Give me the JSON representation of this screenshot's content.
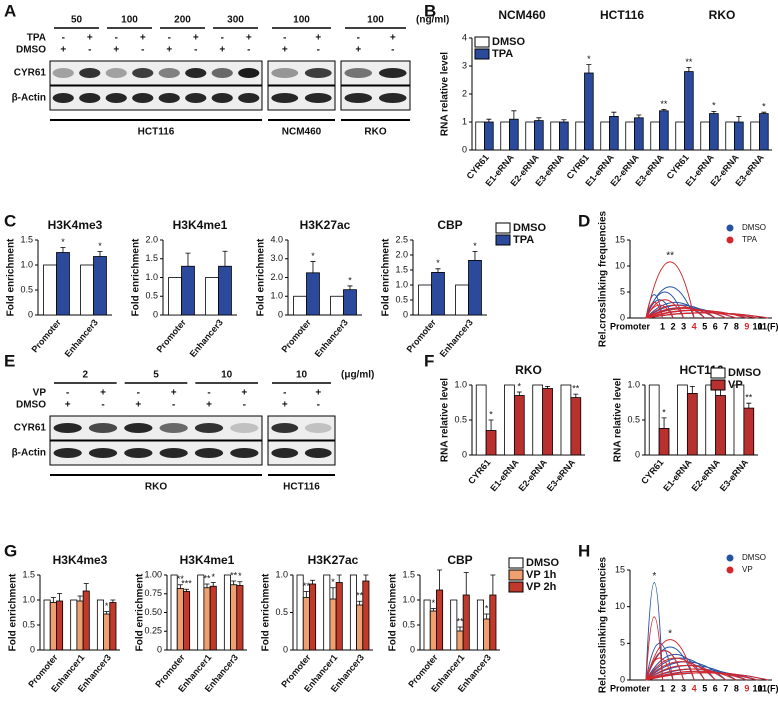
{
  "panel_labels": [
    "A",
    "B",
    "C",
    "D",
    "E",
    "F",
    "G",
    "H"
  ],
  "blots": [
    {
      "unit": "(ng/ml)",
      "treatments": [
        {
          "label": "TPA",
          "signs": [
            "-",
            "+"
          ]
        },
        {
          "label": "DMSO",
          "signs": [
            "+",
            "-"
          ]
        }
      ],
      "sections": [
        {
          "cell_line": "HCT116",
          "concentrations": [
            "50",
            "100",
            "200",
            "300"
          ]
        },
        {
          "cell_line": "NCM460",
          "concentrations": [
            "100"
          ]
        },
        {
          "cell_line": "RKO",
          "concentrations": [
            "100"
          ]
        }
      ],
      "proteins": [
        {
          "name": "CYR61",
          "bands": [
            [
              0.35,
              0.85,
              0.35,
              0.8,
              0.5,
              0.9,
              0.6,
              0.95
            ],
            [
              0.4,
              0.8
            ],
            [
              0.55,
              0.9
            ]
          ]
        },
        {
          "name": "β-Actin",
          "bands": [
            [
              0.9,
              0.9,
              0.9,
              0.9,
              0.9,
              0.9,
              0.9,
              0.9
            ],
            [
              0.9,
              0.9
            ],
            [
              0.9,
              0.9
            ]
          ]
        }
      ]
    },
    {
      "unit": "(μg/ml)",
      "treatments": [
        {
          "label": "VP",
          "signs": [
            "-",
            "+"
          ]
        },
        {
          "label": "DMSO",
          "signs": [
            "+",
            "-"
          ]
        }
      ],
      "sections": [
        {
          "cell_line": "RKO",
          "concentrations": [
            "2",
            "5",
            "10"
          ]
        },
        {
          "cell_line": "HCT116",
          "concentrations": [
            "10"
          ]
        }
      ],
      "proteins": [
        {
          "name": "CYR61",
          "bands": [
            [
              0.9,
              0.75,
              0.9,
              0.6,
              0.85,
              0.2
            ],
            [
              0.85,
              0.2
            ]
          ]
        },
        {
          "name": "β-Actin",
          "bands": [
            [
              0.9,
              0.9,
              0.9,
              0.9,
              0.9,
              0.9
            ],
            [
              0.9,
              0.9
            ]
          ]
        }
      ]
    }
  ],
  "chart_data": [
    {
      "type": "bar",
      "y_label": "RNA relative level",
      "groups": [
        "NCM460",
        "HCT116",
        "RKO"
      ],
      "categories": [
        "CYR61",
        "E1-eRNA",
        "E2-eRNA",
        "E3-eRNA",
        "CYR61",
        "E1-eRNA",
        "E2-eRNA",
        "E3-eRNA",
        "CYR61",
        "E1-eRNA",
        "E2-eRNA",
        "E3-eRNA"
      ],
      "series": [
        {
          "name": "DMSO",
          "color": "#ffffff",
          "values": [
            1,
            1,
            1,
            1,
            1,
            1,
            1,
            1,
            1,
            1,
            1,
            1
          ]
        },
        {
          "name": "TPA",
          "color": "#2b4a9b",
          "values": [
            1.0,
            1.1,
            1.05,
            1.0,
            2.75,
            1.2,
            1.15,
            1.4,
            2.8,
            1.3,
            1.0,
            1.3
          ],
          "errors": [
            0.1,
            0.3,
            0.1,
            0.08,
            0.3,
            0.15,
            0.1,
            0.05,
            0.15,
            0.08,
            0.2,
            0.05
          ],
          "stars": [
            null,
            null,
            null,
            null,
            "*",
            null,
            null,
            "**",
            "**",
            "*",
            null,
            "*"
          ]
        }
      ],
      "ylim": [
        0,
        4
      ],
      "yticks": [
        0,
        1,
        2,
        3,
        4
      ],
      "legend": "upper left"
    },
    {
      "type": "bar",
      "title": "H3K4me3",
      "y_label": "Fold enrichment",
      "categories": [
        "Promoter",
        "Enhancer3"
      ],
      "series": [
        {
          "name": "DMSO",
          "color": "#ffffff",
          "values": [
            1,
            1
          ]
        },
        {
          "name": "TPA",
          "color": "#2b4a9b",
          "values": [
            1.25,
            1.17
          ],
          "errors": [
            0.1,
            0.1
          ],
          "stars": [
            "*",
            "*"
          ]
        }
      ],
      "ylim": [
        0,
        1.5
      ],
      "yticks": [
        0,
        0.5,
        {
          "value": 1,
          "label": "1.0"
        },
        1.5
      ]
    },
    {
      "type": "bar",
      "title": "H3K4me1",
      "y_label": "Fold enrichment",
      "categories": [
        "Promoter",
        "Enhancer3"
      ],
      "series": [
        {
          "name": "DMSO",
          "color": "#ffffff",
          "values": [
            1,
            1
          ]
        },
        {
          "name": "TPA",
          "color": "#2b4a9b",
          "values": [
            1.3,
            1.3
          ],
          "errors": [
            0.35,
            0.4
          ],
          "stars": [
            null,
            null
          ]
        }
      ],
      "ylim": [
        0,
        2
      ],
      "yticks": [
        0,
        0.5,
        {
          "value": 1,
          "label": "1.0"
        },
        1.5,
        {
          "value": 2,
          "label": "2.0"
        }
      ]
    },
    {
      "type": "bar",
      "title": "H3K27ac",
      "y_label": "Fold enrichment",
      "categories": [
        "Promoter",
        "Enhancer3"
      ],
      "series": [
        {
          "name": "DMSO",
          "color": "#ffffff",
          "values": [
            1,
            1
          ]
        },
        {
          "name": "TPA",
          "color": "#2b4a9b",
          "values": [
            2.25,
            1.35
          ],
          "errors": [
            0.6,
            0.2
          ],
          "stars": [
            "*",
            "*"
          ]
        }
      ],
      "ylim": [
        0,
        4
      ],
      "yticks": [
        0,
        {
          "value": 1,
          "label": "1.0"
        },
        {
          "value": 2,
          "label": "2.0"
        },
        {
          "value": 3,
          "label": "3.0"
        },
        {
          "value": 4,
          "label": "4.0"
        }
      ]
    },
    {
      "type": "bar",
      "title": "CBP",
      "y_label": "Fold enrichment",
      "categories": [
        "Promoter",
        "Enhancer3"
      ],
      "series": [
        {
          "name": "DMSO",
          "color": "#ffffff",
          "values": [
            1,
            1
          ]
        },
        {
          "name": "TPA",
          "color": "#2b4a9b",
          "values": [
            1.42,
            1.82
          ],
          "errors": [
            0.12,
            0.3
          ],
          "stars": [
            "*",
            "*"
          ]
        }
      ],
      "ylim": [
        0,
        2.5
      ],
      "yticks": [
        0,
        0.5,
        {
          "value": 1,
          "label": "1.0"
        },
        1.5,
        {
          "value": 2,
          "label": "2.0"
        },
        2.5
      ],
      "legend": "outside right"
    },
    {
      "type": "arc",
      "y_label": "Rel.crosslinking frequencies",
      "categories": [
        "Promoter",
        "1",
        "2",
        "3",
        "4",
        "5",
        "6",
        "7",
        "8",
        "9",
        "10",
        "11(F)"
      ],
      "category_colors": [
        "#000",
        "#000",
        "#000",
        "#000",
        "#d7262b",
        "#000",
        "#000",
        "#000",
        "#000",
        "#d7262b",
        "#000",
        "#000"
      ],
      "series": [
        {
          "name": "DMSO",
          "color": "#2552a3",
          "values": [
            null,
            4.5,
            3.5,
            5,
            6,
            3,
            2.5,
            2,
            1.5,
            1.5,
            1,
            1
          ]
        },
        {
          "name": "TPA",
          "color": "#d7262b",
          "values": [
            null,
            3,
            2.5,
            3.5,
            10.8,
            2.5,
            2,
            1.8,
            1.5,
            1.5,
            1,
            1
          ],
          "stars": [
            null,
            null,
            null,
            null,
            "**",
            null,
            null,
            null,
            null,
            null,
            null,
            null
          ]
        }
      ],
      "ylim": [
        0,
        15
      ],
      "yticks": [
        0,
        5,
        10,
        15
      ],
      "legend": "upper right"
    },
    {
      "type": "bar",
      "title": "RKO",
      "y_label": "RNA relative level",
      "categories": [
        "CYR61",
        "E1-eRNA",
        "E2-eRNA",
        "E3-eRNA"
      ],
      "series": [
        {
          "name": "DMSO",
          "color": "#ffffff",
          "values": [
            1,
            1,
            1,
            1
          ]
        },
        {
          "name": "VP",
          "color": "#b8312f",
          "values": [
            0.35,
            0.85,
            0.95,
            0.82
          ],
          "errors": [
            0.15,
            0.05,
            0.03,
            0.05
          ],
          "stars": [
            "*",
            "*",
            null,
            "**"
          ]
        }
      ],
      "ylim": [
        0,
        1
      ],
      "yticks": [
        0,
        0.5,
        {
          "value": 1,
          "label": "1.0"
        }
      ]
    },
    {
      "type": "bar",
      "title": "HCT116",
      "y_label": "RNA relative level",
      "categories": [
        "CYR61",
        "E1-eRNA",
        "E2-eRNA",
        "E3-eRNA"
      ],
      "series": [
        {
          "name": "DMSO",
          "color": "#ffffff",
          "values": [
            1,
            1,
            1,
            1
          ]
        },
        {
          "name": "VP",
          "color": "#b8312f",
          "values": [
            0.38,
            0.88,
            0.85,
            0.67
          ],
          "errors": [
            0.15,
            0.1,
            0.1,
            0.07
          ],
          "stars": [
            "*",
            null,
            null,
            "**"
          ]
        }
      ],
      "ylim": [
        0,
        1
      ],
      "yticks": [
        0,
        0.5,
        {
          "value": 1,
          "label": "1.0"
        }
      ],
      "legend": "upper right"
    },
    {
      "type": "bar",
      "title": "H3K4me3",
      "y_label": "Fold enrichment",
      "categories": [
        "Promoter",
        "Enhancer1",
        "Enhancer3"
      ],
      "series": [
        {
          "name": "DMSO",
          "color": "#ffffff",
          "values": [
            1,
            1,
            1
          ]
        },
        {
          "name": "VP 1h",
          "color": "#f0a070",
          "values": [
            0.95,
            0.98,
            0.72
          ],
          "errors": [
            0.1,
            0.1,
            0.05
          ],
          "stars": [
            null,
            null,
            "*"
          ]
        },
        {
          "name": "VP 2h",
          "color": "#c0392b",
          "values": [
            0.98,
            1.18,
            0.95
          ],
          "errors": [
            0.15,
            0.15,
            0.05
          ],
          "stars": [
            null,
            null,
            null
          ]
        }
      ],
      "ylim": [
        0,
        1.5
      ],
      "yticks": [
        0,
        0.5,
        {
          "value": 1,
          "label": "1.0"
        },
        1.5
      ]
    },
    {
      "type": "bar",
      "title": "H3K4me1",
      "y_label": "Fold enrichment",
      "categories": [
        "Promoter",
        "Enhancer1",
        "Enhancer3"
      ],
      "series": [
        {
          "name": "DMSO",
          "color": "#ffffff",
          "values": [
            1,
            1,
            1
          ]
        },
        {
          "name": "VP 1h",
          "color": "#f0a070",
          "values": [
            0.82,
            0.83,
            0.87
          ],
          "errors": [
            0.05,
            0.05,
            0.05
          ],
          "stars": [
            "**",
            "**",
            "**"
          ]
        },
        {
          "name": "VP 2h",
          "color": "#c0392b",
          "values": [
            0.78,
            0.85,
            0.86
          ],
          "errors": [
            0.03,
            0.05,
            0.05
          ],
          "stars": [
            "***",
            "*",
            "*"
          ]
        }
      ],
      "ylim": [
        0,
        1
      ],
      "yticks": [
        0,
        0.25,
        {
          "value": 0.5,
          "label": "0.50"
        },
        0.75,
        {
          "value": 1,
          "label": "1.00"
        }
      ]
    },
    {
      "type": "bar",
      "title": "H3K27ac",
      "y_label": "Fold enrichment",
      "categories": [
        "Promoter",
        "Enhancer1",
        "Enhancer3"
      ],
      "series": [
        {
          "name": "DMSO",
          "color": "#ffffff",
          "values": [
            1,
            1,
            1
          ]
        },
        {
          "name": "VP 1h",
          "color": "#f0a070",
          "values": [
            0.7,
            0.68,
            0.6
          ],
          "errors": [
            0.08,
            0.15,
            0.05
          ],
          "stars": [
            "**",
            "*",
            "**"
          ]
        },
        {
          "name": "VP 2h",
          "color": "#c0392b",
          "values": [
            0.88,
            0.9,
            0.92
          ],
          "errors": [
            0.05,
            0.1,
            0.08
          ],
          "stars": [
            null,
            null,
            null
          ]
        }
      ],
      "ylim": [
        0,
        1
      ],
      "yticks": [
        0,
        0.5,
        {
          "value": 1,
          "label": "1.0"
        }
      ]
    },
    {
      "type": "bar",
      "title": "CBP",
      "y_label": "Fold enrichment",
      "categories": [
        "Promoter",
        "Enhancer1",
        "Enhancer3"
      ],
      "series": [
        {
          "name": "DMSO",
          "color": "#ffffff",
          "values": [
            1,
            1,
            1
          ]
        },
        {
          "name": "VP 1h",
          "color": "#f0a070",
          "values": [
            0.78,
            0.38,
            0.62
          ],
          "errors": [
            0.05,
            0.08,
            0.1
          ],
          "stars": [
            "*",
            "**",
            "*"
          ]
        },
        {
          "name": "VP 2h",
          "color": "#c0392b",
          "values": [
            1.2,
            1.1,
            1.1
          ],
          "errors": [
            0.4,
            0.45,
            0.4
          ],
          "stars": [
            null,
            null,
            null
          ]
        }
      ],
      "ylim": [
        0,
        1.5
      ],
      "yticks": [
        0,
        0.5,
        {
          "value": 1,
          "label": "1.0"
        },
        1.5
      ],
      "legend": "outside right"
    },
    {
      "type": "arc",
      "y_label": "Rel.crosslinking frequencies",
      "categories": [
        "Promoter",
        "1",
        "2",
        "3",
        "4",
        "5",
        "6",
        "7",
        "8",
        "9",
        "10",
        "11(F)"
      ],
      "category_colors": [
        "#000",
        "#000",
        "#000",
        "#000",
        "#d7262b",
        "#000",
        "#000",
        "#000",
        "#000",
        "#d7262b",
        "#000",
        "#000"
      ],
      "series": [
        {
          "name": "DMSO",
          "color": "#2552a3",
          "values": [
            null,
            13.3,
            5,
            4,
            4.5,
            3.5,
            3,
            2.5,
            2,
            1.5,
            1.2,
            1
          ],
          "stars": [
            null,
            "*",
            null,
            null,
            null,
            null,
            null,
            null,
            null,
            null,
            null,
            null
          ]
        },
        {
          "name": "VP",
          "color": "#d7262b",
          "values": [
            null,
            8.6,
            3,
            4,
            5.5,
            3,
            2.5,
            2,
            1.5,
            1.2,
            1,
            1
          ],
          "stars": [
            null,
            null,
            null,
            null,
            "*",
            null,
            null,
            null,
            null,
            null,
            null,
            null
          ]
        }
      ],
      "ylim": [
        0,
        15
      ],
      "yticks": [
        0,
        5,
        10,
        15
      ],
      "legend": "upper right"
    }
  ]
}
